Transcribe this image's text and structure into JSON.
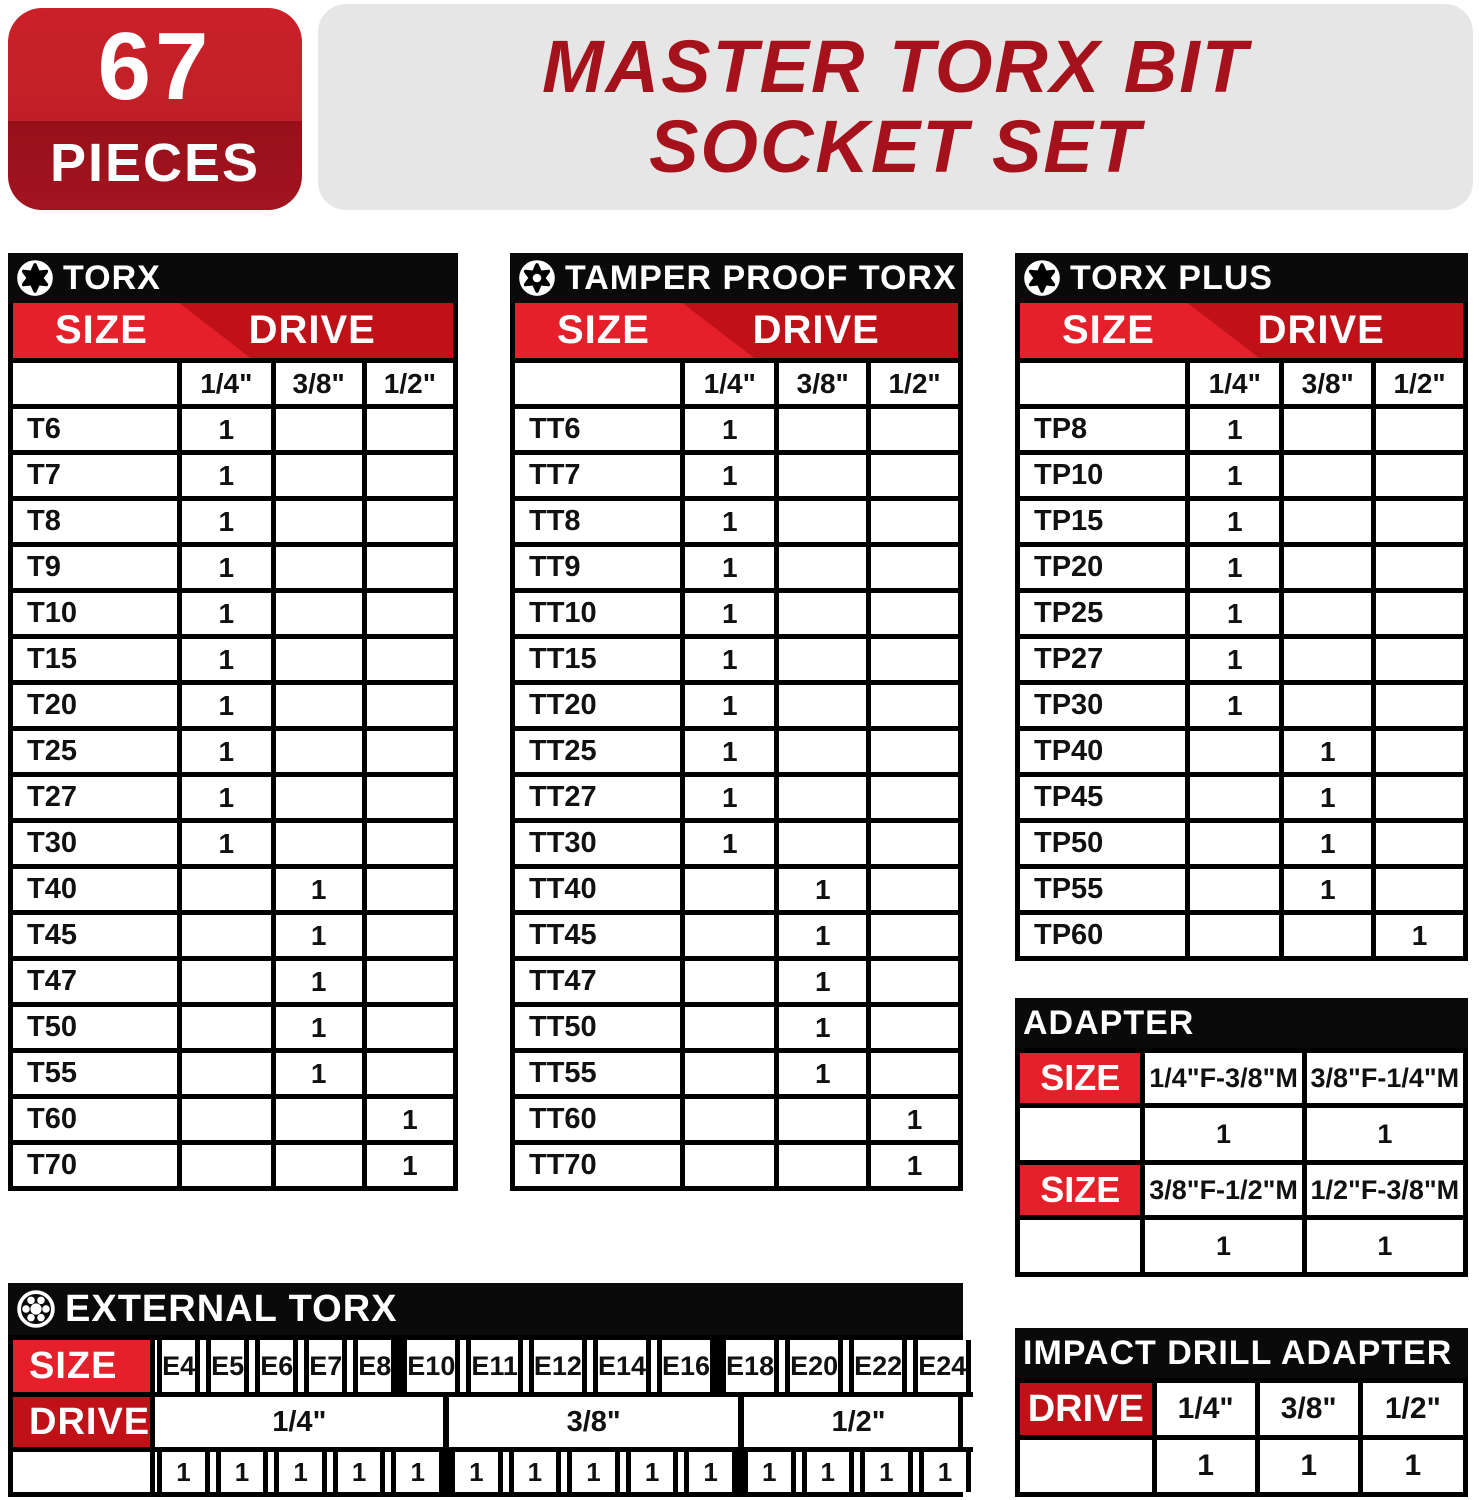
{
  "badge": {
    "count": "67",
    "label": "PIECES"
  },
  "title": {
    "line1": "MASTER TORX BIT",
    "line2": "SOCKET SET"
  },
  "labels": {
    "size": "SIZE",
    "drive": "DRIVE"
  },
  "colors": {
    "bright_red": "#e5202a",
    "dark_red": "#bf1117",
    "badge_top_red": "#c01f27",
    "badge_bottom_red": "#971019",
    "title_red": "#a5121b",
    "banner_gray": "#e6e6e6",
    "black": "#0a0a0a"
  },
  "tables": {
    "torx": {
      "title": "TORX",
      "drives": [
        "1/4\"",
        "3/8\"",
        "1/2\""
      ],
      "rows": [
        {
          "size": "T6",
          "counts": [
            "1",
            "",
            ""
          ]
        },
        {
          "size": "T7",
          "counts": [
            "1",
            "",
            ""
          ]
        },
        {
          "size": "T8",
          "counts": [
            "1",
            "",
            ""
          ]
        },
        {
          "size": "T9",
          "counts": [
            "1",
            "",
            ""
          ]
        },
        {
          "size": "T10",
          "counts": [
            "1",
            "",
            ""
          ]
        },
        {
          "size": "T15",
          "counts": [
            "1",
            "",
            ""
          ]
        },
        {
          "size": "T20",
          "counts": [
            "1",
            "",
            ""
          ]
        },
        {
          "size": "T25",
          "counts": [
            "1",
            "",
            ""
          ]
        },
        {
          "size": "T27",
          "counts": [
            "1",
            "",
            ""
          ]
        },
        {
          "size": "T30",
          "counts": [
            "1",
            "",
            ""
          ]
        },
        {
          "size": "T40",
          "counts": [
            "",
            "1",
            ""
          ]
        },
        {
          "size": "T45",
          "counts": [
            "",
            "1",
            ""
          ]
        },
        {
          "size": "T47",
          "counts": [
            "",
            "1",
            ""
          ]
        },
        {
          "size": "T50",
          "counts": [
            "",
            "1",
            ""
          ]
        },
        {
          "size": "T55",
          "counts": [
            "",
            "1",
            ""
          ]
        },
        {
          "size": "T60",
          "counts": [
            "",
            "",
            "1"
          ]
        },
        {
          "size": "T70",
          "counts": [
            "",
            "",
            "1"
          ]
        }
      ]
    },
    "tamper": {
      "title": "TAMPER PROOF TORX",
      "drives": [
        "1/4\"",
        "3/8\"",
        "1/2\""
      ],
      "rows": [
        {
          "size": "TT6",
          "counts": [
            "1",
            "",
            ""
          ]
        },
        {
          "size": "TT7",
          "counts": [
            "1",
            "",
            ""
          ]
        },
        {
          "size": "TT8",
          "counts": [
            "1",
            "",
            ""
          ]
        },
        {
          "size": "TT9",
          "counts": [
            "1",
            "",
            ""
          ]
        },
        {
          "size": "TT10",
          "counts": [
            "1",
            "",
            ""
          ]
        },
        {
          "size": "TT15",
          "counts": [
            "1",
            "",
            ""
          ]
        },
        {
          "size": "TT20",
          "counts": [
            "1",
            "",
            ""
          ]
        },
        {
          "size": "TT25",
          "counts": [
            "1",
            "",
            ""
          ]
        },
        {
          "size": "TT27",
          "counts": [
            "1",
            "",
            ""
          ]
        },
        {
          "size": "TT30",
          "counts": [
            "1",
            "",
            ""
          ]
        },
        {
          "size": "TT40",
          "counts": [
            "",
            "1",
            ""
          ]
        },
        {
          "size": "TT45",
          "counts": [
            "",
            "1",
            ""
          ]
        },
        {
          "size": "TT47",
          "counts": [
            "",
            "1",
            ""
          ]
        },
        {
          "size": "TT50",
          "counts": [
            "",
            "1",
            ""
          ]
        },
        {
          "size": "TT55",
          "counts": [
            "",
            "1",
            ""
          ]
        },
        {
          "size": "TT60",
          "counts": [
            "",
            "",
            "1"
          ]
        },
        {
          "size": "TT70",
          "counts": [
            "",
            "",
            "1"
          ]
        }
      ]
    },
    "torx_plus": {
      "title": "TORX PLUS",
      "drives": [
        "1/4\"",
        "3/8\"",
        "1/2\""
      ],
      "rows": [
        {
          "size": "TP8",
          "counts": [
            "1",
            "",
            ""
          ]
        },
        {
          "size": "TP10",
          "counts": [
            "1",
            "",
            ""
          ]
        },
        {
          "size": "TP15",
          "counts": [
            "1",
            "",
            ""
          ]
        },
        {
          "size": "TP20",
          "counts": [
            "1",
            "",
            ""
          ]
        },
        {
          "size": "TP25",
          "counts": [
            "1",
            "",
            ""
          ]
        },
        {
          "size": "TP27",
          "counts": [
            "1",
            "",
            ""
          ]
        },
        {
          "size": "TP30",
          "counts": [
            "1",
            "",
            ""
          ]
        },
        {
          "size": "TP40",
          "counts": [
            "",
            "1",
            ""
          ]
        },
        {
          "size": "TP45",
          "counts": [
            "",
            "1",
            ""
          ]
        },
        {
          "size": "TP50",
          "counts": [
            "",
            "1",
            ""
          ]
        },
        {
          "size": "TP55",
          "counts": [
            "",
            "1",
            ""
          ]
        },
        {
          "size": "TP60",
          "counts": [
            "",
            "",
            "1"
          ]
        }
      ]
    },
    "adapter": {
      "title": "ADAPTER",
      "groups": [
        {
          "cols": [
            "1/4\"F-3/8\"M",
            "3/8\"F-1/4\"M"
          ],
          "counts": [
            "1",
            "1"
          ]
        },
        {
          "cols": [
            "3/8\"F-1/2\"M",
            "1/2\"F-3/8\"M"
          ],
          "counts": [
            "1",
            "1"
          ]
        }
      ]
    },
    "external": {
      "title": "EXTERNAL TORX",
      "sizes": [
        "E4",
        "E5",
        "E6",
        "E7",
        "E8",
        "E10",
        "E11",
        "E12",
        "E14",
        "E16",
        "E18",
        "E20",
        "E22",
        "E24"
      ],
      "drive_groups": [
        {
          "label": "1/4\"",
          "span": 5
        },
        {
          "label": "3/8\"",
          "span": 5
        },
        {
          "label": "1/2\"",
          "span": 4
        }
      ],
      "counts": [
        "1",
        "1",
        "1",
        "1",
        "1",
        "1",
        "1",
        "1",
        "1",
        "1",
        "1",
        "1",
        "1",
        "1"
      ]
    },
    "impact": {
      "title": "IMPACT DRILL ADAPTER",
      "drives": [
        "1/4\"",
        "3/8\"",
        "1/2\""
      ],
      "counts": [
        "1",
        "1",
        "1"
      ]
    }
  }
}
